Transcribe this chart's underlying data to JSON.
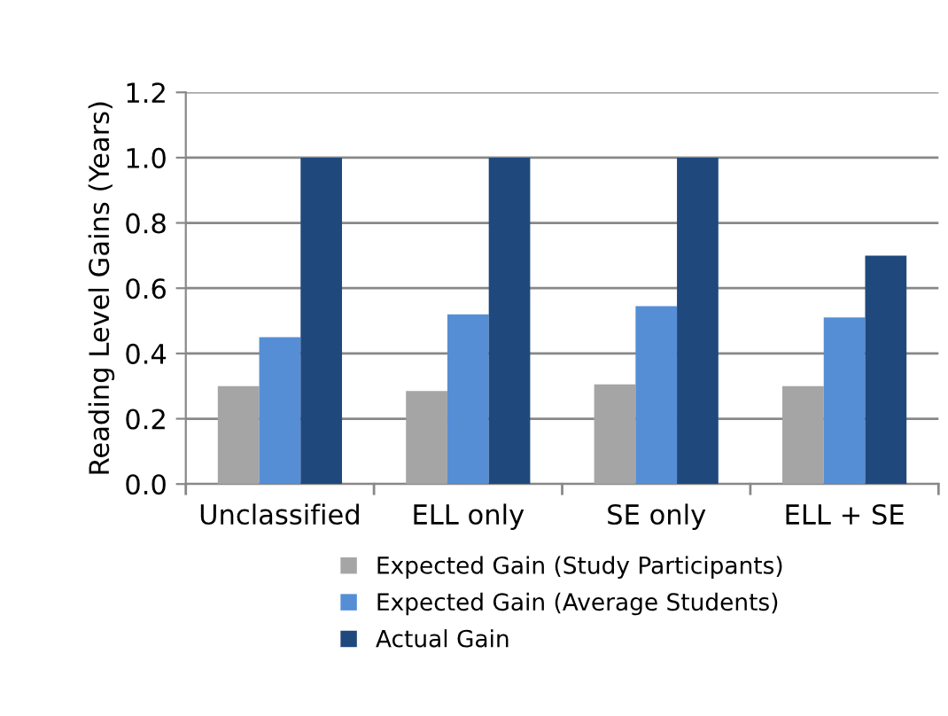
{
  "chart_data": {
    "type": "bar",
    "ylabel": "Reading Level Gains (Years)",
    "categories": [
      "Unclassified",
      "ELL only",
      "SE only",
      "ELL + SE"
    ],
    "series": [
      {
        "name": "Expected Gain (Study Participants)",
        "color": "#a5a5a5",
        "values": [
          0.3,
          0.285,
          0.305,
          0.3
        ]
      },
      {
        "name": "Expected Gain (Average Students)",
        "color": "#558ed5",
        "values": [
          0.45,
          0.52,
          0.545,
          0.51
        ]
      },
      {
        "name": "Actual Gain",
        "color": "#1f497d",
        "values": [
          1.0,
          1.0,
          1.0,
          0.7
        ]
      }
    ],
    "ylim": [
      0,
      1.2
    ],
    "yticks": [
      {
        "value": 0,
        "label": "0.0"
      },
      0.2,
      0.4,
      0.6,
      0.8,
      {
        "value": 1,
        "label": "1.0"
      },
      1.2
    ],
    "grid": "y",
    "legend": "bottom"
  }
}
